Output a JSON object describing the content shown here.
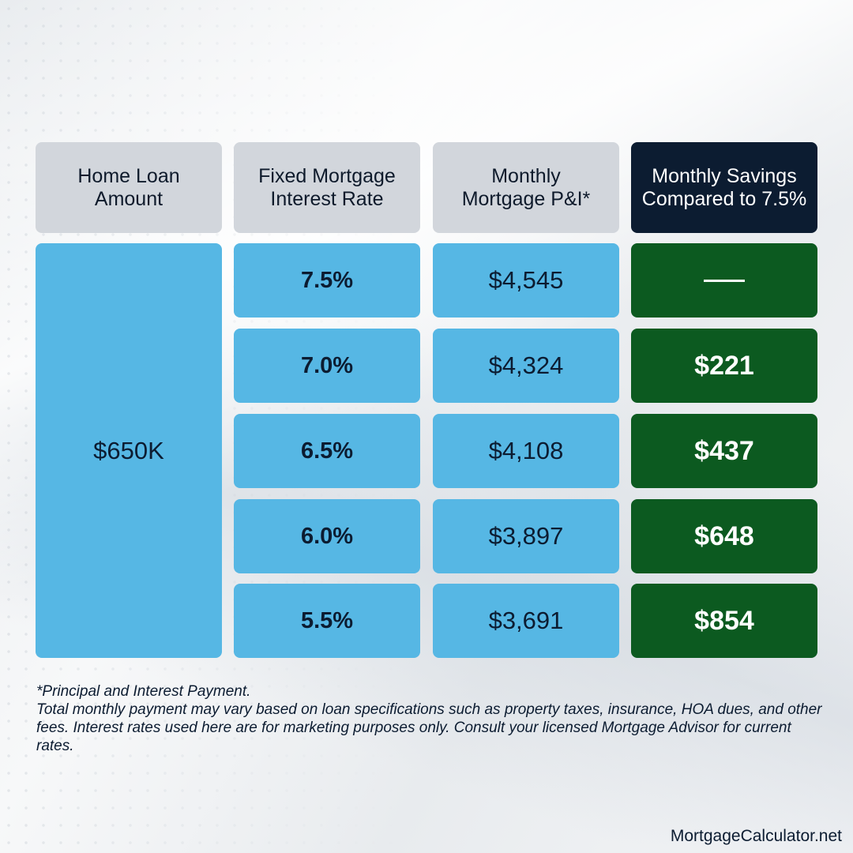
{
  "table": {
    "headers": [
      "Home Loan\nAmount",
      "Fixed Mortgage\nInterest Rate",
      "Monthly\nMortgage P&I*",
      "Monthly Savings\nCompared to 7.5%"
    ],
    "loan_amount": "$650K",
    "rows": [
      {
        "rate": "7.5%",
        "payment": "$4,545",
        "savings": "—"
      },
      {
        "rate": "7.0%",
        "payment": "$4,324",
        "savings": "$221"
      },
      {
        "rate": "6.5%",
        "payment": "$4,108",
        "savings": "$437"
      },
      {
        "rate": "6.0%",
        "payment": "$3,897",
        "savings": "$648"
      },
      {
        "rate": "5.5%",
        "payment": "$3,691",
        "savings": "$854"
      }
    ]
  },
  "footnote": {
    "line1": "*Principal and Interest Payment.",
    "line2": "Total monthly payment may vary based on loan specifications such as property taxes, insurance, HOA dues, and other fees. Interest rates used here are for marketing purposes only. Consult your licensed Mortgage Advisor for current rates."
  },
  "brand": "MortgageCalculator.net",
  "colors": {
    "header_gray": "#d2d6dc",
    "header_navy": "#0c1c31",
    "cell_blue": "#56b7e4",
    "savings_green": "#0c5a20",
    "text_navy": "#0c1c31"
  }
}
